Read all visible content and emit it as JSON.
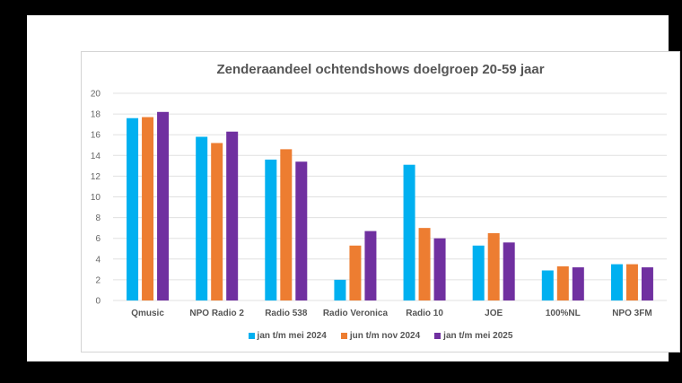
{
  "chart_data": {
    "type": "bar",
    "title": "Zenderaandeel ochtendshows doelgroep 20-59 jaar",
    "categories": [
      "Qmusic",
      "NPO Radio 2",
      "Radio 538",
      "Radio Veronica",
      "Radio 10",
      "JOE",
      "100%NL",
      "NPO 3FM"
    ],
    "series": [
      {
        "name": "jan t/m mei 2024",
        "color": "#00b0f0",
        "values": [
          17.6,
          15.8,
          13.6,
          2.0,
          13.1,
          5.3,
          2.9,
          3.5
        ]
      },
      {
        "name": "jun t/m nov 2024",
        "color": "#ed7d31",
        "values": [
          17.7,
          15.2,
          14.6,
          5.3,
          7.0,
          6.5,
          3.3,
          3.5
        ]
      },
      {
        "name": "jan t/m mei 2025",
        "color": "#7030a0",
        "values": [
          18.2,
          16.3,
          13.4,
          6.7,
          6.0,
          5.6,
          3.2,
          3.2
        ]
      }
    ],
    "ylim": [
      0,
      20
    ],
    "yticks": [
      "0",
      "2",
      "4",
      "6",
      "8",
      "10",
      "12",
      "14",
      "16",
      "18",
      "20"
    ],
    "grid": true,
    "legend": "bottom",
    "xlabel": "",
    "ylabel": ""
  }
}
